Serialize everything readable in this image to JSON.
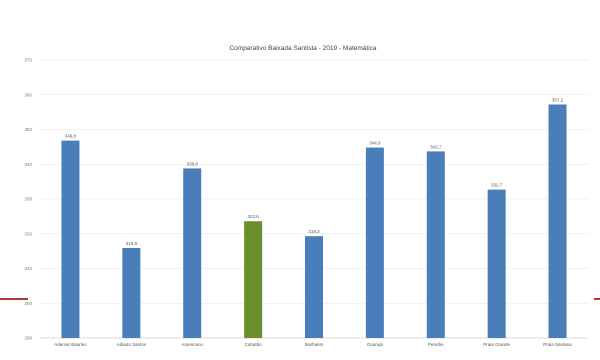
{
  "chart_data": {
    "type": "bar",
    "title": "Comparativo Baixada Santista - 2019 - Matemática",
    "categories": [
      "Ademar Baarles",
      "Adauto Santos",
      "Americano",
      "Cubatão",
      "Itanhaém",
      "Guarujá",
      "Peruíbe",
      "Praia Grande",
      "Praia Santana"
    ],
    "values": [
      346.8,
      315.9,
      338.8,
      323.6,
      319.3,
      344.8,
      343.7,
      332.7,
      357.2
    ],
    "value_labels": [
      "346,8",
      "315,9",
      "338,8",
      "323,6",
      "319,3",
      "344,8",
      "343,7",
      "332,7",
      "357,2"
    ],
    "highlight_index": 3,
    "colors": {
      "bar": "#4a7ebb",
      "highlight": "#6b8e2f",
      "grid": "#e6e6e6",
      "accent": "#b03a3a"
    },
    "ylim": [
      290,
      370
    ],
    "yticks": [
      290,
      300,
      310,
      320,
      330,
      340,
      350,
      360,
      370
    ],
    "grid": true,
    "legend": "none",
    "xlabel": "",
    "ylabel": ""
  }
}
